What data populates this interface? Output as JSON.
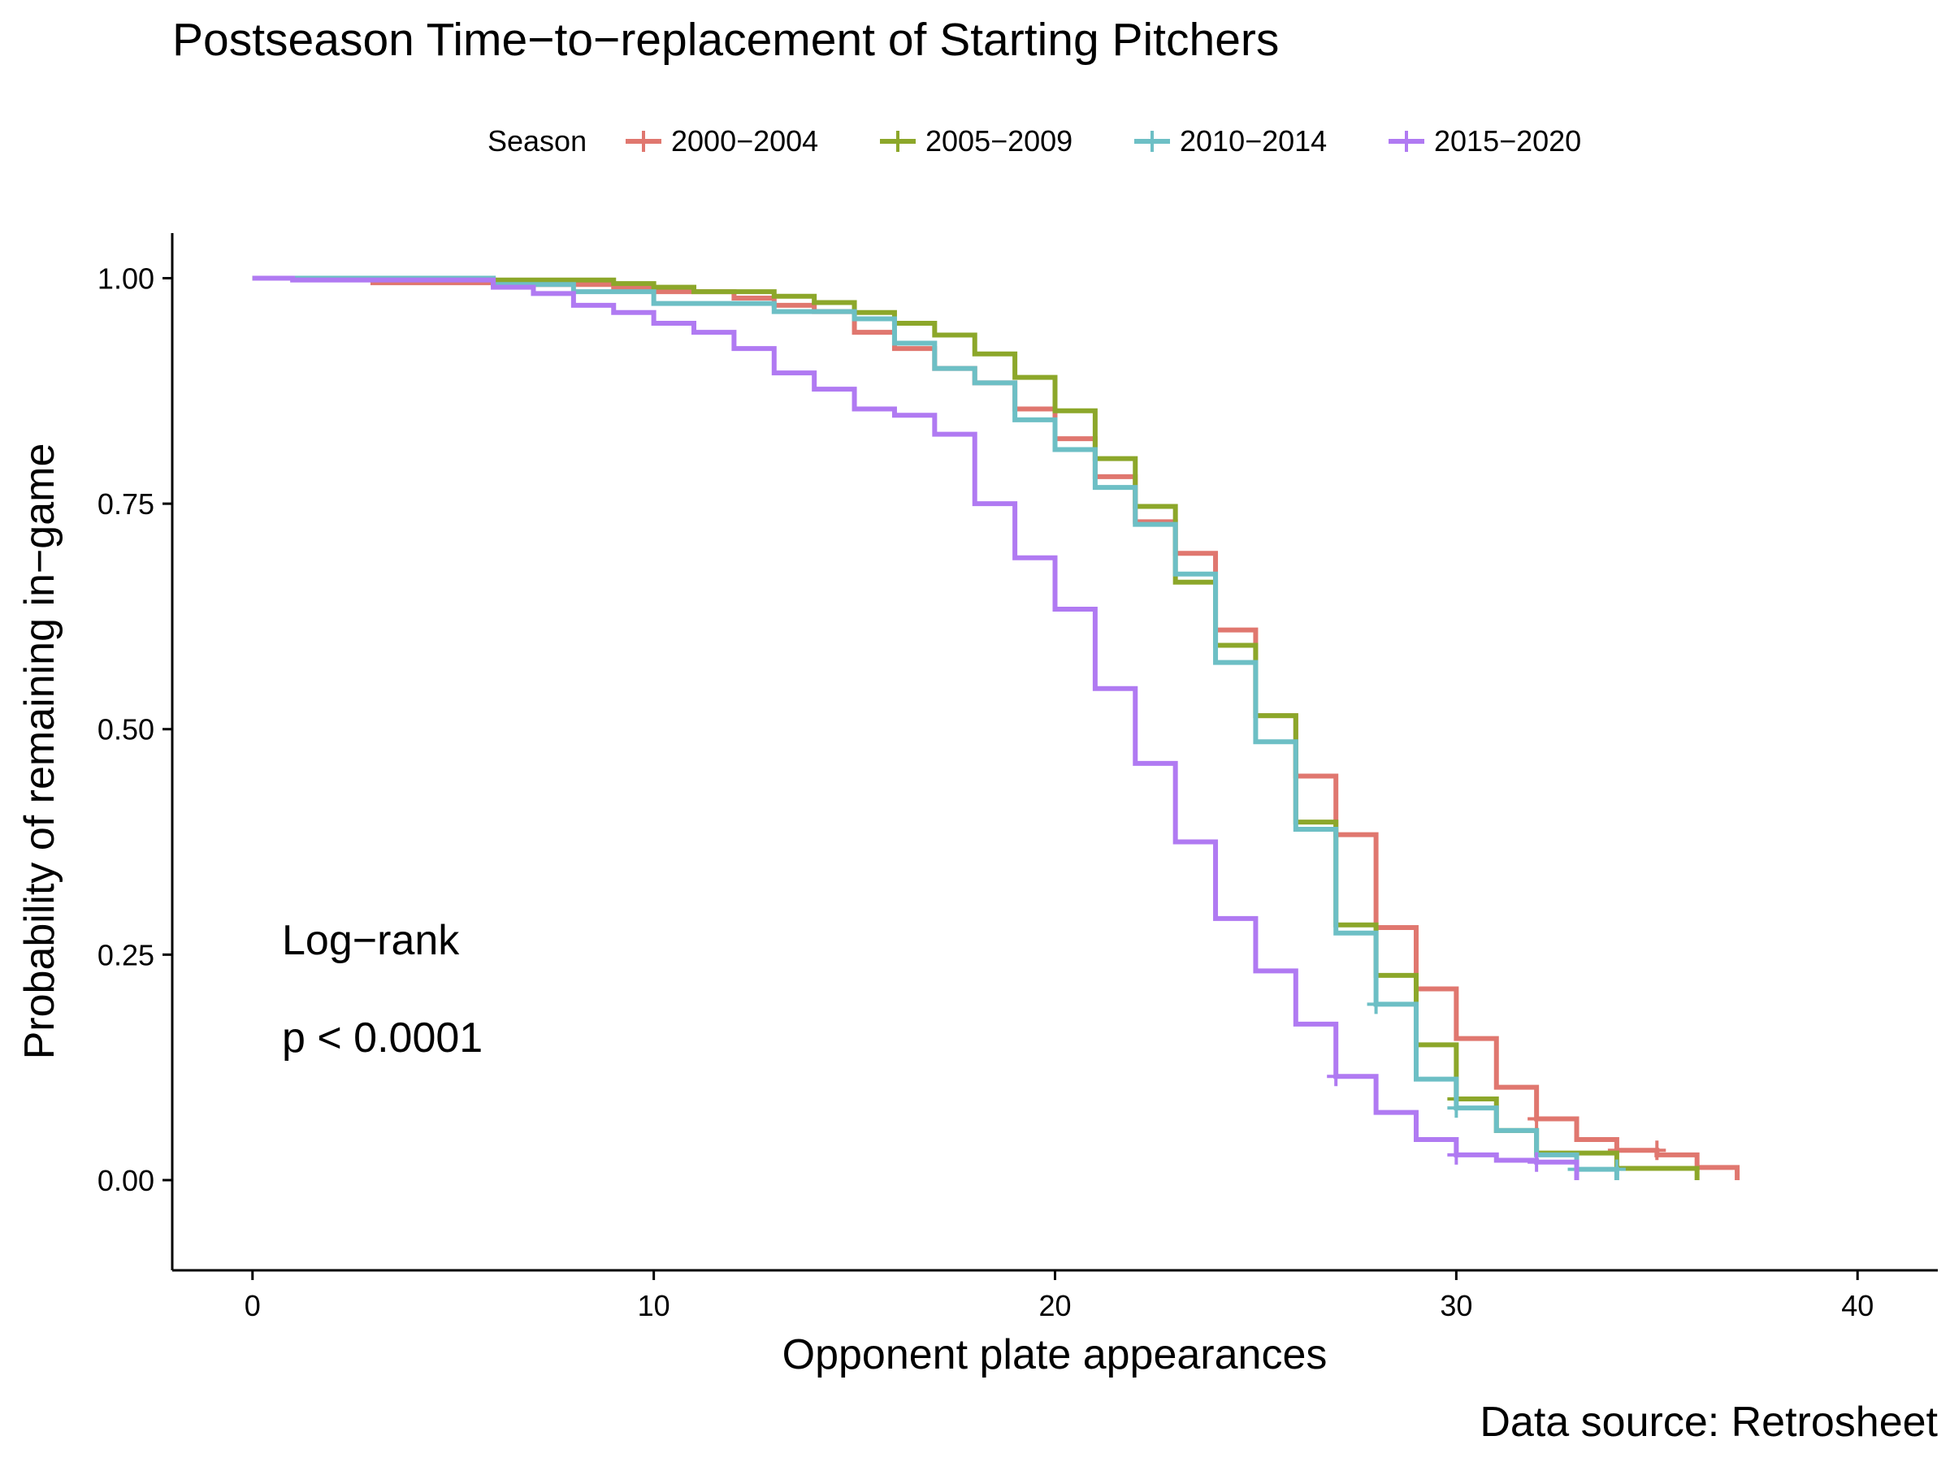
{
  "chart_data": {
    "type": "line",
    "title": "Postseason Time−to−replacement of Starting Pitchers",
    "xlabel": "Opponent plate appearances",
    "ylabel": "Probability of remaining in−game",
    "caption": "Data source: Retrosheet",
    "legend": {
      "title": "Season",
      "placement": "top"
    },
    "annotations": [
      "Log−rank",
      "p < 0.0001"
    ],
    "xlim": [
      -2,
      42
    ],
    "ylim": [
      -0.1,
      1.05
    ],
    "x_ticks": [
      0,
      10,
      20,
      30,
      40
    ],
    "x_tick_labels": [
      "0",
      "10",
      "20",
      "30",
      "40"
    ],
    "y_ticks": [
      0,
      0.25,
      0.5,
      0.75,
      1.0
    ],
    "y_tick_labels": [
      "0.00",
      "0.25",
      "0.50",
      "0.75",
      "1.00"
    ],
    "grid": false,
    "step": true,
    "series": [
      {
        "name": "2000−2004",
        "color": "#E0776F",
        "x": [
          0,
          3,
          6,
          9,
          10,
          12,
          13,
          14,
          15,
          16,
          17,
          18,
          19,
          20,
          21,
          22,
          23,
          24,
          25,
          26,
          27,
          28,
          29,
          30,
          31,
          32,
          33,
          34,
          35,
          36,
          37
        ],
        "y": [
          1.0,
          0.995,
          0.993,
          0.99,
          0.985,
          0.978,
          0.97,
          0.963,
          0.94,
          0.922,
          0.9,
          0.884,
          0.855,
          0.822,
          0.78,
          0.73,
          0.695,
          0.61,
          0.515,
          0.448,
          0.383,
          0.28,
          0.212,
          0.157,
          0.103,
          0.068,
          0.045,
          0.033,
          0.028,
          0.014,
          0.0
        ],
        "censor_x": [
          32,
          34,
          35
        ],
        "censor_y": [
          0.068,
          0.033,
          0.033
        ]
      },
      {
        "name": "2005−2009",
        "color": "#8CA72A",
        "x": [
          0,
          6,
          9,
          10,
          11,
          13,
          14,
          15,
          16,
          17,
          18,
          19,
          20,
          21,
          22,
          23,
          24,
          25,
          26,
          27,
          28,
          29,
          30,
          31,
          32,
          34,
          36
        ],
        "y": [
          1.0,
          0.998,
          0.994,
          0.99,
          0.985,
          0.98,
          0.973,
          0.962,
          0.95,
          0.937,
          0.916,
          0.89,
          0.853,
          0.8,
          0.747,
          0.663,
          0.593,
          0.515,
          0.397,
          0.283,
          0.227,
          0.15,
          0.09,
          0.055,
          0.03,
          0.013,
          0.0
        ],
        "censor_x": [
          30
        ],
        "censor_y": [
          0.09
        ]
      },
      {
        "name": "2010−2014",
        "color": "#6DBFC5",
        "x": [
          0,
          6,
          8,
          10,
          13,
          15,
          16,
          17,
          18,
          19,
          20,
          21,
          22,
          23,
          24,
          25,
          26,
          27,
          28,
          29,
          30,
          31,
          32,
          33,
          34
        ],
        "y": [
          1.0,
          0.993,
          0.985,
          0.972,
          0.963,
          0.955,
          0.928,
          0.9,
          0.884,
          0.843,
          0.81,
          0.768,
          0.727,
          0.672,
          0.574,
          0.486,
          0.389,
          0.274,
          0.195,
          0.112,
          0.08,
          0.055,
          0.028,
          0.012,
          0.0
        ],
        "censor_x": [
          28,
          30,
          33,
          34
        ],
        "censor_y": [
          0.195,
          0.08,
          0.012,
          0.012
        ]
      },
      {
        "name": "2015−2020",
        "color": "#B07AF2",
        "x": [
          0,
          1,
          6,
          7,
          8,
          9,
          10,
          11,
          12,
          13,
          14,
          15,
          16,
          17,
          18,
          19,
          20,
          21,
          22,
          23,
          24,
          25,
          26,
          27,
          28,
          29,
          30,
          31,
          32,
          33
        ],
        "y": [
          1.0,
          0.998,
          0.99,
          0.983,
          0.97,
          0.962,
          0.95,
          0.94,
          0.922,
          0.895,
          0.877,
          0.855,
          0.848,
          0.827,
          0.75,
          0.69,
          0.633,
          0.545,
          0.462,
          0.375,
          0.29,
          0.232,
          0.173,
          0.115,
          0.075,
          0.045,
          0.028,
          0.022,
          0.02,
          0.0
        ],
        "censor_x": [
          27,
          30,
          32
        ],
        "censor_y": [
          0.115,
          0.028,
          0.02
        ]
      }
    ]
  }
}
